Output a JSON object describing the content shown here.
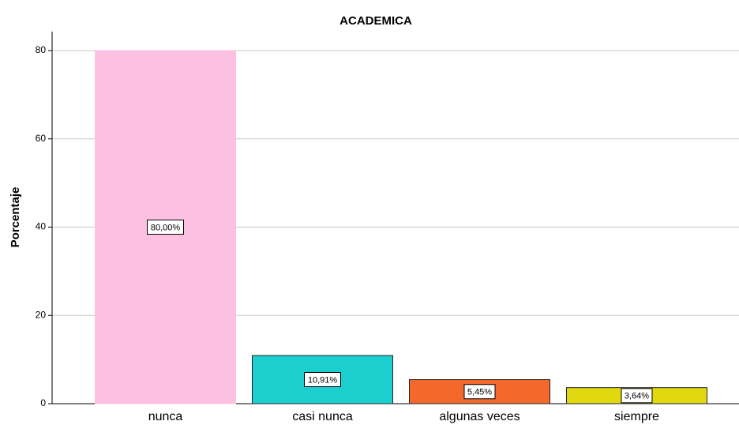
{
  "chart_data": {
    "type": "bar",
    "title": "ACADEMICA",
    "y_label": "Porcentaje",
    "categories": [
      "nunca",
      "casi nunca",
      "algunas veces",
      "siempre"
    ],
    "values": [
      80,
      10.91,
      5.45,
      3.64
    ],
    "value_labels": [
      "80,00%",
      "10,91%",
      "5,45%",
      "3,64%"
    ],
    "colors": [
      "#fcc1e1",
      "#1ccfcf",
      "#f4682c",
      "#e2d810"
    ],
    "ylim": [
      0,
      84.3
    ],
    "yticks": [
      0,
      20,
      40,
      60,
      80
    ],
    "grid": true
  }
}
